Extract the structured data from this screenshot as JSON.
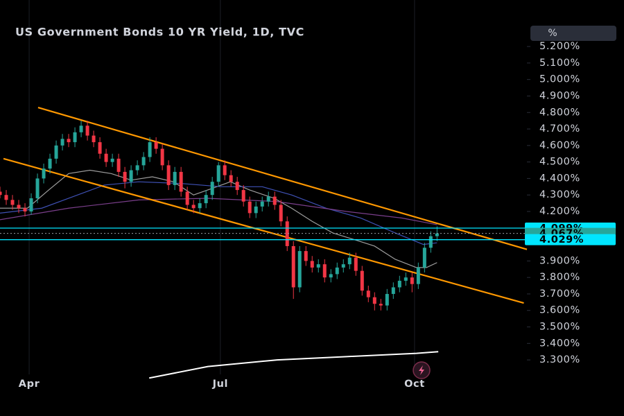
{
  "chart_data": {
    "type": "candlestick",
    "title": "US Government Bonds 10 YR Yield, 1D, TVC",
    "unit_button": "%",
    "up_color": "#26a69a",
    "down_color": "#f23645",
    "xlim": [
      0,
      84.4
    ],
    "xticks": [
      {
        "value": 4.67,
        "label": "Apr"
      },
      {
        "value": 35.3,
        "label": "Jul"
      },
      {
        "value": 66.4,
        "label": "Oct"
      }
    ],
    "ylim": [
      2.96,
      5.482
    ],
    "yticks": [
      {
        "value": 5.2,
        "label": "5.200%"
      },
      {
        "value": 5.1,
        "label": "5.100%"
      },
      {
        "value": 5.0,
        "label": "5.000%"
      },
      {
        "value": 4.9,
        "label": "4.900%"
      },
      {
        "value": 4.8,
        "label": "4.800%"
      },
      {
        "value": 4.7,
        "label": "4.700%"
      },
      {
        "value": 4.6,
        "label": "4.600%"
      },
      {
        "value": 4.5,
        "label": "4.500%"
      },
      {
        "value": 4.4,
        "label": "4.400%"
      },
      {
        "value": 4.3,
        "label": "4.300%"
      },
      {
        "value": 4.2,
        "label": "4.200%"
      },
      {
        "value": 3.9,
        "label": "3.900%"
      },
      {
        "value": 3.8,
        "label": "3.800%"
      },
      {
        "value": 3.7,
        "label": "3.700%"
      },
      {
        "value": 3.6,
        "label": "3.600%"
      },
      {
        "value": 3.5,
        "label": "3.500%"
      },
      {
        "value": 3.4,
        "label": "3.400%"
      },
      {
        "value": 3.3,
        "label": "3.300%"
      }
    ],
    "ohlc": [
      [
        4.32,
        4.35,
        4.28,
        4.3
      ],
      [
        4.3,
        4.33,
        4.24,
        4.27
      ],
      [
        4.27,
        4.3,
        4.21,
        4.24
      ],
      [
        4.24,
        4.27,
        4.19,
        4.22
      ],
      [
        4.22,
        4.25,
        4.17,
        4.2
      ],
      [
        4.2,
        4.31,
        4.18,
        4.28
      ],
      [
        4.28,
        4.43,
        4.25,
        4.4
      ],
      [
        4.4,
        4.49,
        4.37,
        4.46
      ],
      [
        4.46,
        4.55,
        4.43,
        4.52
      ],
      [
        4.52,
        4.63,
        4.49,
        4.6
      ],
      [
        4.6,
        4.67,
        4.57,
        4.64
      ],
      [
        4.64,
        4.67,
        4.59,
        4.62
      ],
      [
        4.62,
        4.71,
        4.59,
        4.68
      ],
      [
        4.68,
        4.75,
        4.65,
        4.72
      ],
      [
        4.72,
        4.75,
        4.63,
        4.66
      ],
      [
        4.66,
        4.69,
        4.59,
        4.62
      ],
      [
        4.62,
        4.65,
        4.52,
        4.55
      ],
      [
        4.55,
        4.58,
        4.47,
        4.5
      ],
      [
        4.5,
        4.55,
        4.47,
        4.52
      ],
      [
        4.52,
        4.55,
        4.41,
        4.44
      ],
      [
        4.44,
        4.47,
        4.34,
        4.38
      ],
      [
        4.38,
        4.48,
        4.35,
        4.45
      ],
      [
        4.45,
        4.51,
        4.42,
        4.48
      ],
      [
        4.48,
        4.56,
        4.45,
        4.53
      ],
      [
        4.53,
        4.65,
        4.5,
        4.62
      ],
      [
        4.62,
        4.65,
        4.55,
        4.58
      ],
      [
        4.58,
        4.61,
        4.45,
        4.48
      ],
      [
        4.48,
        4.51,
        4.33,
        4.36
      ],
      [
        4.36,
        4.47,
        4.33,
        4.44
      ],
      [
        4.44,
        4.47,
        4.29,
        4.32
      ],
      [
        4.32,
        4.35,
        4.21,
        4.24
      ],
      [
        4.24,
        4.27,
        4.19,
        4.22
      ],
      [
        4.22,
        4.28,
        4.19,
        4.25
      ],
      [
        4.25,
        4.33,
        4.22,
        4.3
      ],
      [
        4.3,
        4.41,
        4.27,
        4.38
      ],
      [
        4.38,
        4.5,
        4.35,
        4.48
      ],
      [
        4.48,
        4.51,
        4.39,
        4.42
      ],
      [
        4.42,
        4.45,
        4.35,
        4.38
      ],
      [
        4.38,
        4.41,
        4.3,
        4.33
      ],
      [
        4.33,
        4.36,
        4.23,
        4.26
      ],
      [
        4.26,
        4.29,
        4.16,
        4.19
      ],
      [
        4.19,
        4.26,
        4.16,
        4.23
      ],
      [
        4.23,
        4.29,
        4.2,
        4.26
      ],
      [
        4.26,
        4.32,
        4.23,
        4.29
      ],
      [
        4.29,
        4.32,
        4.21,
        4.24
      ],
      [
        4.24,
        4.27,
        4.11,
        4.14
      ],
      [
        4.14,
        4.17,
        3.96,
        3.99
      ],
      [
        3.99,
        4.02,
        3.67,
        3.74
      ],
      [
        3.74,
        3.99,
        3.71,
        3.96
      ],
      [
        3.96,
        3.99,
        3.87,
        3.9
      ],
      [
        3.9,
        3.93,
        3.83,
        3.86
      ],
      [
        3.86,
        3.91,
        3.83,
        3.88
      ],
      [
        3.88,
        3.91,
        3.77,
        3.8
      ],
      [
        3.8,
        3.85,
        3.77,
        3.82
      ],
      [
        3.82,
        3.89,
        3.79,
        3.86
      ],
      [
        3.86,
        3.91,
        3.83,
        3.88
      ],
      [
        3.88,
        3.95,
        3.85,
        3.92
      ],
      [
        3.92,
        3.95,
        3.81,
        3.84
      ],
      [
        3.84,
        3.87,
        3.69,
        3.72
      ],
      [
        3.72,
        3.75,
        3.65,
        3.68
      ],
      [
        3.68,
        3.71,
        3.6,
        3.64
      ],
      [
        3.64,
        3.67,
        3.6,
        3.63
      ],
      [
        3.63,
        3.73,
        3.6,
        3.7
      ],
      [
        3.7,
        3.77,
        3.67,
        3.74
      ],
      [
        3.74,
        3.81,
        3.71,
        3.78
      ],
      [
        3.78,
        3.83,
        3.75,
        3.8
      ],
      [
        3.8,
        3.83,
        3.71,
        3.76
      ],
      [
        3.76,
        3.89,
        3.73,
        3.86
      ],
      [
        3.86,
        4.01,
        3.83,
        3.98
      ],
      [
        3.98,
        4.08,
        3.95,
        4.05
      ],
      [
        4.05,
        4.11,
        4.02,
        4.067
      ]
    ],
    "lines": [
      {
        "color": "#9e9e9e",
        "x": [
          0,
          4.4,
          7.8,
          11,
          14.4,
          17.8,
          21,
          24.4,
          27.8,
          31,
          34,
          36.9,
          40,
          43.9,
          46.7,
          50,
          53.3,
          56.7,
          60,
          63.3,
          66.7,
          68.3,
          70
        ],
        "values": [
          4.22,
          4.22,
          4.33,
          4.43,
          4.45,
          4.43,
          4.39,
          4.41,
          4.38,
          4.3,
          4.34,
          4.38,
          4.33,
          4.28,
          4.22,
          4.14,
          4.07,
          4.03,
          3.99,
          3.91,
          3.86,
          3.86,
          3.89
        ]
      },
      {
        "color": "#3f51b5",
        "x": [
          0,
          6.7,
          11,
          16.7,
          22.2,
          28.9,
          35.5,
          42,
          46.7,
          52.2,
          57.8,
          63.3,
          67.8,
          70
        ],
        "values": [
          4.19,
          4.22,
          4.28,
          4.36,
          4.38,
          4.37,
          4.35,
          4.35,
          4.3,
          4.22,
          4.16,
          4.07,
          4.0,
          4.01
        ]
      },
      {
        "color": "#7b3f8c",
        "x": [
          0,
          11,
          22.2,
          33.3,
          44.4,
          55.5,
          64.4,
          70
        ],
        "values": [
          4.15,
          4.22,
          4.27,
          4.28,
          4.26,
          4.2,
          4.16,
          4.12
        ]
      },
      {
        "color": "#ffffff",
        "x": [
          23.9,
          33.3,
          44.4,
          55.5,
          66.7,
          70.2
        ],
        "values": [
          3.19,
          3.26,
          3.3,
          3.32,
          3.34,
          3.35
        ]
      },
      {
        "color": "#ff9800",
        "x": [
          6.1,
          84.4
        ],
        "values": [
          4.83,
          3.97
        ]
      },
      {
        "color": "#ff9800",
        "x": [
          0.56,
          83.9
        ],
        "values": [
          4.52,
          3.645
        ]
      }
    ],
    "levels": [
      {
        "value": 4.099,
        "label": "4.099%",
        "color": "#00e5ff",
        "style": "solid"
      },
      {
        "value": 4.067,
        "label": "4.067%",
        "color": "#26a69a",
        "style": "dotted"
      },
      {
        "value": 4.029,
        "label": "4.029%",
        "color": "#00e5ff",
        "style": "solid"
      }
    ]
  }
}
